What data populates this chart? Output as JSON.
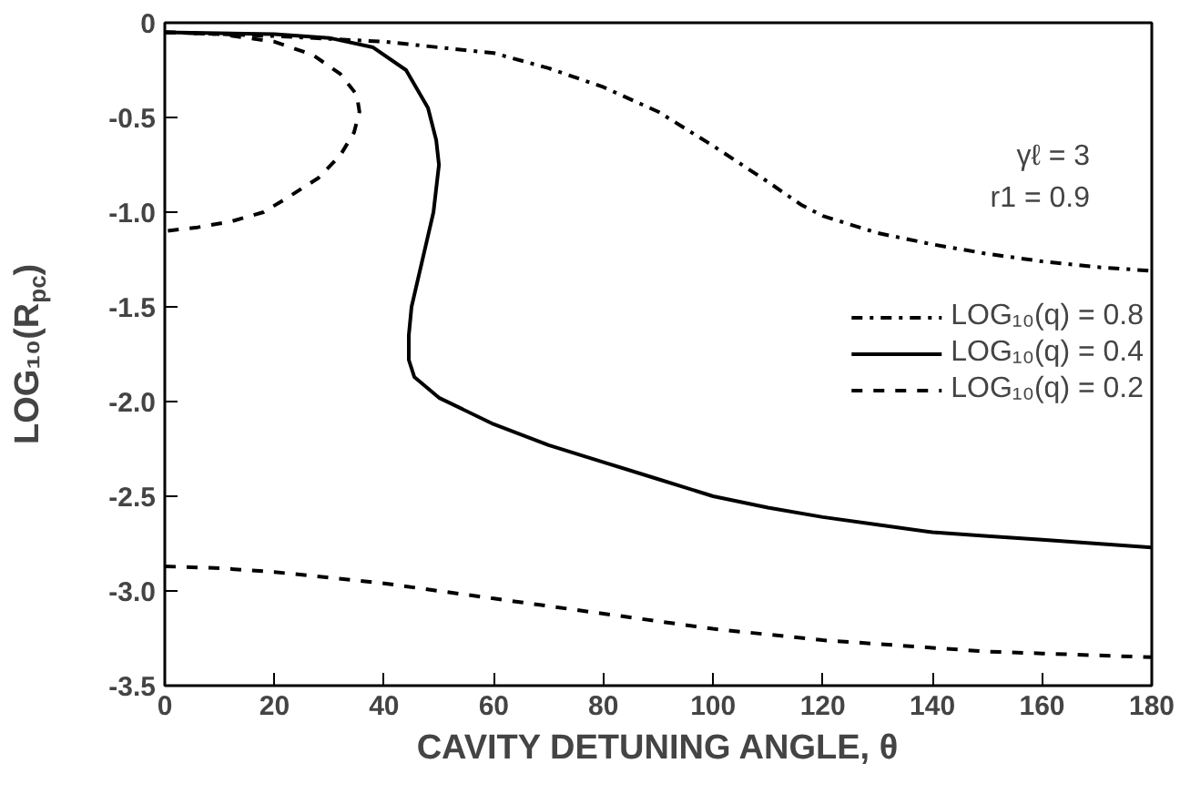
{
  "chart_data": {
    "type": "line",
    "xlabel": "CAVITY DETUNING ANGLE, θ",
    "ylabel": "LOG₁₀(R$_{pc}$)",
    "annotations": [
      "γℓ = 3",
      "r1 = 0.9"
    ],
    "xlim": [
      0,
      180
    ],
    "xticks": [
      0,
      20,
      40,
      60,
      80,
      100,
      120,
      140,
      160,
      180
    ],
    "ylim": [
      -3.5,
      0
    ],
    "yticks": [
      -3.5,
      {
        "value": -3,
        "label": "-3.0"
      },
      -2.5,
      {
        "value": -2,
        "label": "-2.0"
      },
      -1.5,
      {
        "value": -1,
        "label": "-1.0"
      },
      -0.5,
      0
    ],
    "grid": false,
    "legend": "right",
    "marker": "none",
    "series": [
      {
        "name": "LOG₁₀(q) = 0.8",
        "color": "#000000",
        "line_style": "dashdot",
        "x": [
          0,
          20,
          40,
          60,
          70,
          80,
          90,
          100,
          110,
          116,
          120,
          130,
          140,
          150,
          160,
          170,
          180
        ],
        "values": [
          -0.05,
          -0.07,
          -0.1,
          -0.16,
          -0.24,
          -0.34,
          -0.47,
          -0.65,
          -0.84,
          -0.96,
          -1.02,
          -1.11,
          -1.17,
          -1.22,
          -1.26,
          -1.29,
          -1.31
        ]
      },
      {
        "name": "LOG₁₀(q) = 0.4",
        "color": "#000000",
        "line_style": "solid",
        "x": [
          0,
          20,
          30,
          38,
          44,
          48,
          49.5,
          50,
          49,
          47,
          45,
          44.5,
          44.5,
          45.5,
          50,
          60,
          70,
          80,
          90,
          100,
          110,
          120,
          130,
          140,
          150,
          160,
          170,
          180
        ],
        "values": [
          -0.05,
          -0.06,
          -0.08,
          -0.13,
          -0.25,
          -0.45,
          -0.62,
          -0.75,
          -1.0,
          -1.25,
          -1.5,
          -1.65,
          -1.78,
          -1.87,
          -1.98,
          -2.12,
          -2.23,
          -2.32,
          -2.41,
          -2.5,
          -2.56,
          -2.61,
          -2.65,
          -2.69,
          -2.71,
          -2.73,
          -2.75,
          -2.77
        ]
      },
      {
        "name": "LOG₁₀(q) = 0.2",
        "color": "#000000",
        "line_style": "dashed",
        "x": [
          0,
          10,
          20,
          27,
          32,
          35,
          35.5,
          34.5,
          32,
          28,
          22,
          18,
          12,
          6,
          0,
          null,
          0,
          10,
          20,
          30,
          40,
          50,
          60,
          70,
          80,
          90,
          100,
          110,
          120,
          130,
          140,
          150,
          160,
          170,
          180
        ],
        "values": [
          -0.05,
          -0.06,
          -0.1,
          -0.17,
          -0.27,
          -0.38,
          -0.47,
          -0.58,
          -0.7,
          -0.82,
          -0.93,
          -1.0,
          -1.05,
          -1.08,
          -1.1,
          null,
          -2.87,
          -2.88,
          -2.9,
          -2.93,
          -2.96,
          -3.0,
          -3.04,
          -3.08,
          -3.12,
          -3.16,
          -3.2,
          -3.23,
          -3.26,
          -3.28,
          -3.3,
          -3.32,
          -3.33,
          -3.34,
          -3.35
        ]
      }
    ]
  }
}
